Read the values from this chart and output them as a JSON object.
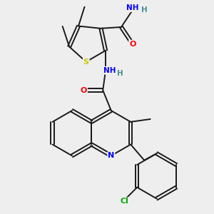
{
  "bg_color": "#eeeeee",
  "bond_color": "#1a1a1a",
  "atom_colors": {
    "S": "#cccc00",
    "N": "#0000ff",
    "O": "#ff0000",
    "Cl": "#00aa00",
    "C": "#1a1a1a",
    "H": "#4a9090"
  },
  "bl": 0.82
}
